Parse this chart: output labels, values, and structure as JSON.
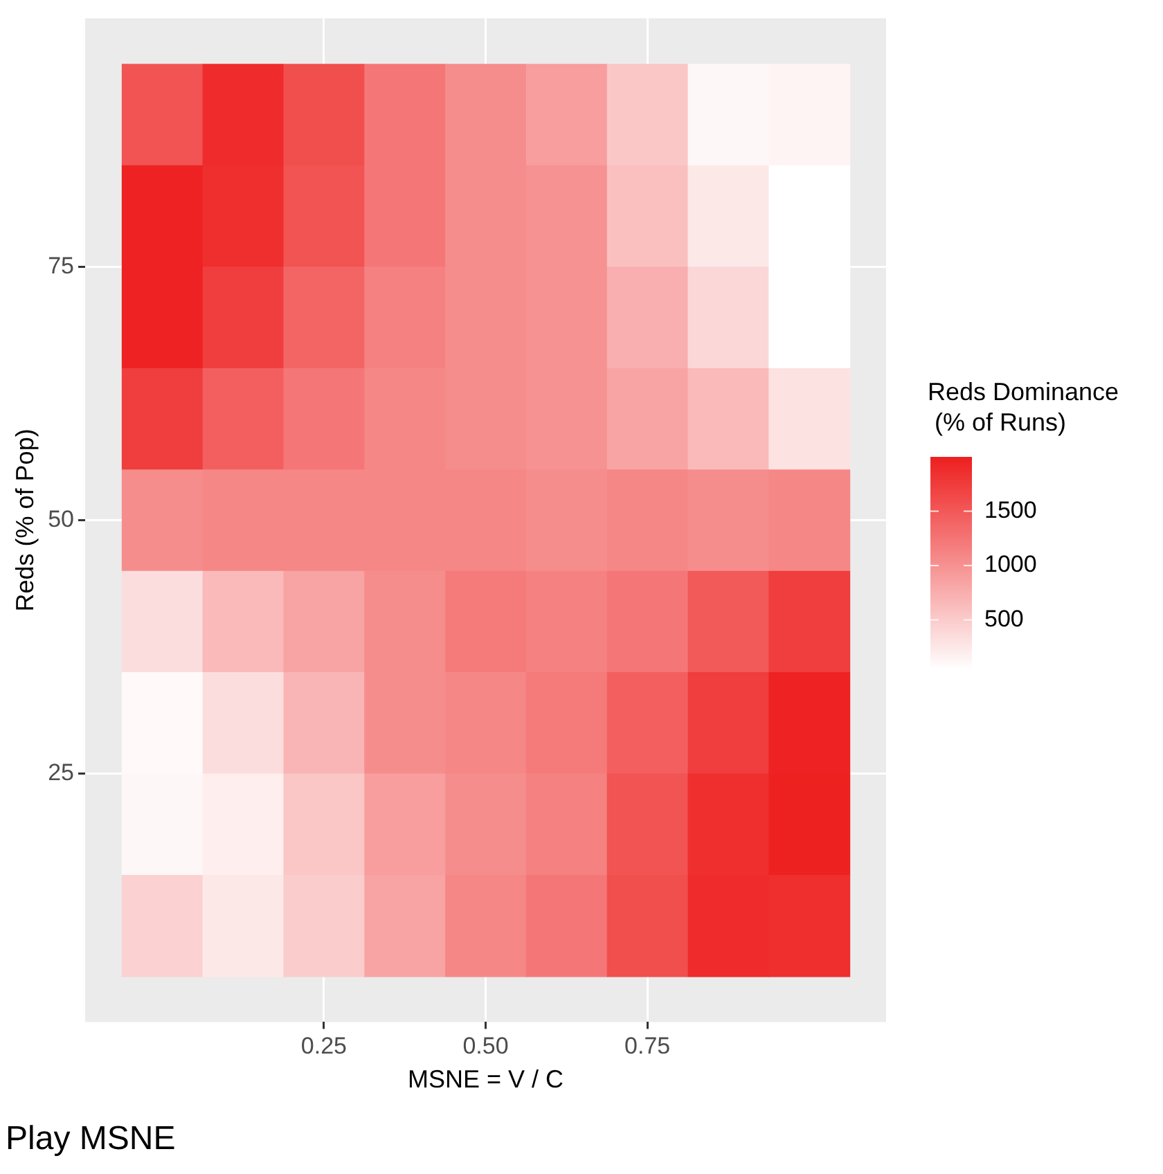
{
  "chart_data": {
    "type": "heatmap",
    "title": "Play MSNE",
    "xlabel": "MSNE = V / C",
    "ylabel": "Reds (% of Pop)",
    "clabel": "Reds Dominance\n (% of Runs)",
    "x": [
      0,
      0.125,
      0.25,
      0.375,
      0.5,
      0.625,
      0.75,
      0.875,
      1
    ],
    "y": [
      90,
      80,
      70,
      60,
      50,
      40,
      30,
      20,
      10
    ],
    "cells": [
      [
        1550,
        1900,
        1600,
        1250,
        1050,
        900,
        550,
        120,
        150
      ],
      [
        1980,
        1880,
        1550,
        1250,
        1050,
        1000,
        600,
        250,
        50
      ],
      [
        1980,
        1750,
        1400,
        1150,
        1050,
        1000,
        750,
        400,
        50
      ],
      [
        1750,
        1450,
        1250,
        1100,
        1050,
        1000,
        850,
        650,
        300
      ],
      [
        1050,
        1100,
        1100,
        1100,
        1100,
        1050,
        1100,
        1050,
        1100
      ],
      [
        350,
        650,
        850,
        1050,
        1200,
        1150,
        1250,
        1500,
        1750
      ],
      [
        100,
        350,
        700,
        1050,
        1100,
        1200,
        1450,
        1750,
        1980
      ],
      [
        120,
        200,
        550,
        900,
        1050,
        1150,
        1550,
        1880,
        1990
      ],
      [
        450,
        250,
        500,
        850,
        1100,
        1250,
        1600,
        1900,
        1880
      ]
    ],
    "colors": [
      "#ffffff",
      "#ee2020"
    ],
    "clim": [
      50,
      2000
    ],
    "cticks": [
      500,
      1000,
      1500
    ],
    "xlim": [
      -0.119,
      1.119
    ],
    "xticks": [
      0.25,
      {
        "value": 0.5,
        "label": "0.50"
      },
      0.75
    ],
    "ylim": [
      0.5,
      99.5
    ],
    "yticks": [
      25,
      50,
      75
    ],
    "grid": true
  }
}
